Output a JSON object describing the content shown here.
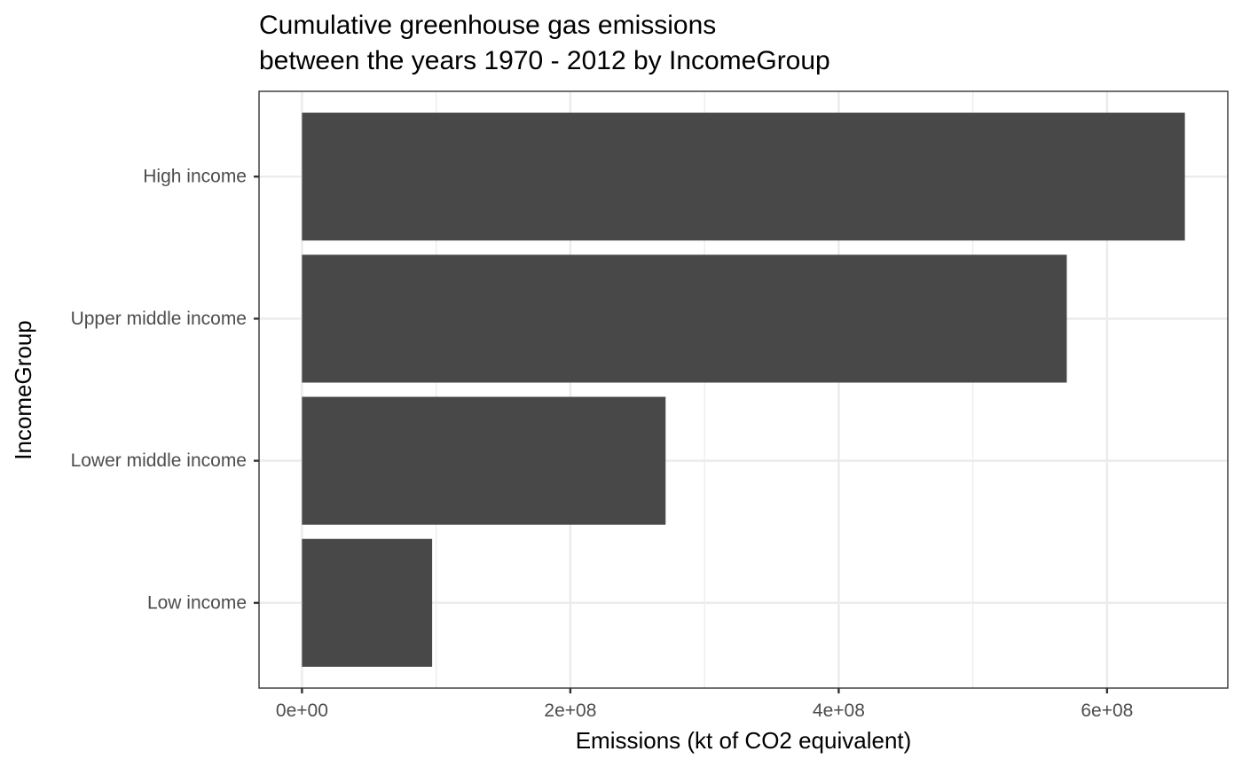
{
  "chart_data": {
    "type": "bar",
    "orientation": "horizontal",
    "title_lines": [
      "Cumulative greenhouse gas emissions",
      "between the years 1970 - 2012 by IncomeGroup"
    ],
    "xlabel": "Emissions (kt of CO2 equivalent)",
    "ylabel": "IncomeGroup",
    "categories": [
      "High income",
      "Upper middle income",
      "Lower middle income",
      "Low income"
    ],
    "values": [
      658000000,
      570000000,
      271000000,
      97000000
    ],
    "xlim": [
      -32000000,
      690000000
    ],
    "x_ticks": [
      0,
      200000000,
      400000000,
      600000000
    ],
    "x_tick_labels": [
      "0e+00",
      "2e+08",
      "4e+08",
      "6e+08"
    ],
    "x_minor_ticks": [
      100000000,
      300000000,
      500000000
    ],
    "bar_color": "#484848",
    "grid": true,
    "theme": "bw"
  }
}
